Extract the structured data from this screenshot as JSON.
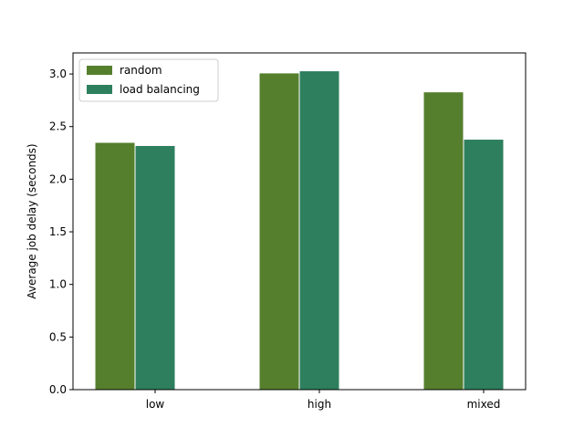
{
  "chart_data": {
    "type": "bar",
    "title": "",
    "xlabel": "",
    "ylabel": "Average job delay (seconds)",
    "categories": [
      "low",
      "high",
      "mixed"
    ],
    "series": [
      {
        "name": "random",
        "values": [
          2.35,
          3.01,
          2.83
        ],
        "color": "#557f2d"
      },
      {
        "name": "load balancing",
        "values": [
          2.32,
          3.03,
          2.38
        ],
        "color": "#2d7f5e"
      }
    ],
    "ylim": [
      0,
      3.2
    ],
    "yticks": [
      0.0,
      0.5,
      1.0,
      1.5,
      2.0,
      2.5,
      3.0
    ],
    "ytick_labels": [
      "0.0",
      "0.5",
      "1.0",
      "1.5",
      "2.0",
      "2.5",
      "3.0"
    ],
    "grid": false,
    "legend_position": "top-left"
  }
}
